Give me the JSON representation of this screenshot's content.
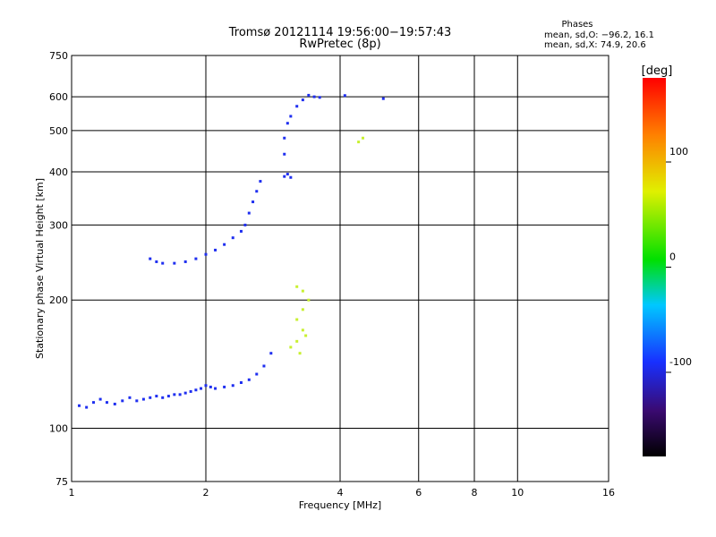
{
  "chart_data": {
    "type": "scatter",
    "title": "Tromsø 20121114 19:56:00−19:57:43",
    "subtitle": "RwPretec (8p)",
    "xlabel": "Frequency [MHz]",
    "ylabel": "Stationary phase Virtual Height [km]",
    "x_scale": "log",
    "y_scale": "log",
    "xlim": [
      1,
      16
    ],
    "ylim": [
      75,
      750
    ],
    "x_ticks": [
      1,
      2,
      4,
      6,
      8,
      10,
      16
    ],
    "y_ticks": [
      75,
      100,
      200,
      300,
      400,
      500,
      600,
      750
    ],
    "grid": true,
    "phase_box": {
      "title": "Phases",
      "line1": "mean, sd,O: −96.2, 16.1",
      "line2": "mean, sd,X:  74.9, 20.6"
    },
    "colorbar": {
      "label": "[deg]",
      "range": [
        -180,
        180
      ],
      "ticks": [
        100,
        0,
        -100
      ]
    },
    "series": [
      {
        "mode": "O",
        "color": "#1f2ff0",
        "description_points_freq_height_phase": [
          [
            1.04,
            113,
            -100
          ],
          [
            1.08,
            112,
            -100
          ],
          [
            1.12,
            115,
            -100
          ],
          [
            1.16,
            117,
            -100
          ],
          [
            1.2,
            115,
            -100
          ],
          [
            1.25,
            114,
            -100
          ],
          [
            1.3,
            116,
            -100
          ],
          [
            1.35,
            118,
            -100
          ],
          [
            1.4,
            116,
            -100
          ],
          [
            1.45,
            117,
            -100
          ],
          [
            1.5,
            118,
            -100
          ],
          [
            1.55,
            119,
            -100
          ],
          [
            1.6,
            118,
            -100
          ],
          [
            1.65,
            119,
            -100
          ],
          [
            1.7,
            120,
            -100
          ],
          [
            1.75,
            120,
            -100
          ],
          [
            1.8,
            121,
            -100
          ],
          [
            1.85,
            122,
            -100
          ],
          [
            1.9,
            123,
            -100
          ],
          [
            1.95,
            124,
            -100
          ],
          [
            2.0,
            126,
            -100
          ],
          [
            2.05,
            125,
            -100
          ],
          [
            2.1,
            124,
            -100
          ],
          [
            2.2,
            125,
            -100
          ],
          [
            2.3,
            126,
            -100
          ],
          [
            2.4,
            128,
            -100
          ],
          [
            2.5,
            130,
            -100
          ],
          [
            2.6,
            134,
            -100
          ],
          [
            2.7,
            140,
            -100
          ],
          [
            2.8,
            150,
            -100
          ],
          [
            1.5,
            250,
            -100
          ],
          [
            1.55,
            246,
            -100
          ],
          [
            1.6,
            244,
            -100
          ],
          [
            1.7,
            244,
            -100
          ],
          [
            1.8,
            246,
            -100
          ],
          [
            1.9,
            250,
            -100
          ],
          [
            2.0,
            256,
            -100
          ],
          [
            2.1,
            262,
            -100
          ],
          [
            2.2,
            270,
            -100
          ],
          [
            2.3,
            280,
            -100
          ],
          [
            2.4,
            290,
            -100
          ],
          [
            2.45,
            300,
            -100
          ],
          [
            2.5,
            320,
            -100
          ],
          [
            2.55,
            340,
            -100
          ],
          [
            2.6,
            360,
            -100
          ],
          [
            2.65,
            380,
            -100
          ],
          [
            3.0,
            390,
            -110
          ],
          [
            3.05,
            395,
            -110
          ],
          [
            3.1,
            388,
            -110
          ],
          [
            3.0,
            440,
            -110
          ],
          [
            3.0,
            480,
            -110
          ],
          [
            3.05,
            520,
            -110
          ],
          [
            3.1,
            540,
            -110
          ],
          [
            3.2,
            570,
            -110
          ],
          [
            3.3,
            590,
            -110
          ],
          [
            3.4,
            605,
            -110
          ],
          [
            3.5,
            600,
            -110
          ],
          [
            3.6,
            598,
            -110
          ],
          [
            4.1,
            604,
            -100
          ],
          [
            5.0,
            594,
            -100
          ]
        ]
      },
      {
        "mode": "X",
        "color": "#c8f030",
        "description_points_freq_height_phase": [
          [
            3.2,
            215,
            80
          ],
          [
            3.3,
            210,
            80
          ],
          [
            3.4,
            200,
            80
          ],
          [
            3.3,
            190,
            75
          ],
          [
            3.2,
            180,
            75
          ],
          [
            3.3,
            170,
            75
          ],
          [
            3.2,
            160,
            75
          ],
          [
            3.1,
            155,
            75
          ],
          [
            3.25,
            150,
            75
          ],
          [
            3.35,
            165,
            75
          ],
          [
            4.5,
            480,
            90
          ],
          [
            4.4,
            470,
            90
          ]
        ]
      }
    ]
  }
}
